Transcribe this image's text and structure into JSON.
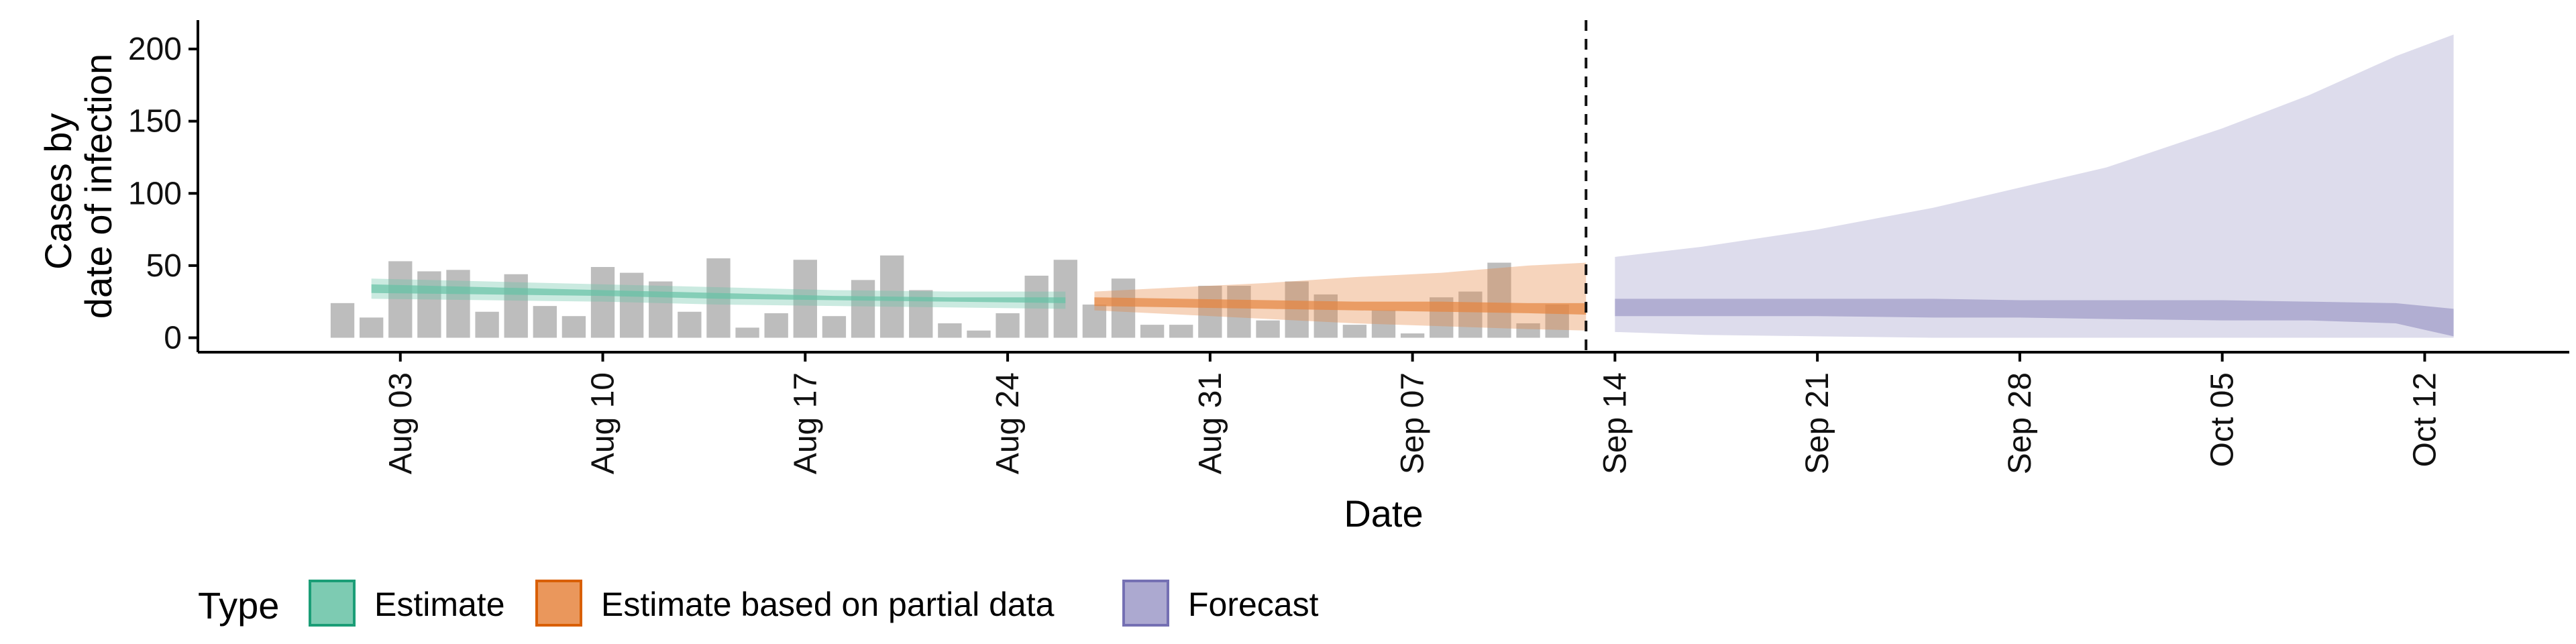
{
  "chart_data": {
    "type": "bar",
    "xlabel": "Date",
    "ylabel_lines": [
      "Cases by",
      "date of infection"
    ],
    "x_range": [
      "2020-07-27",
      "2020-10-17"
    ],
    "ylim": [
      -10,
      220
    ],
    "y_ticks": [
      0,
      50,
      100,
      150,
      200
    ],
    "x_ticks": [
      {
        "date": "2020-08-03",
        "label": "Aug 03"
      },
      {
        "date": "2020-08-10",
        "label": "Aug 10"
      },
      {
        "date": "2020-08-17",
        "label": "Aug 17"
      },
      {
        "date": "2020-08-24",
        "label": "Aug 24"
      },
      {
        "date": "2020-08-31",
        "label": "Aug 31"
      },
      {
        "date": "2020-09-07",
        "label": "Sep 07"
      },
      {
        "date": "2020-09-14",
        "label": "Sep 14"
      },
      {
        "date": "2020-09-21",
        "label": "Sep 21"
      },
      {
        "date": "2020-09-28",
        "label": "Sep 28"
      },
      {
        "date": "2020-10-05",
        "label": "Oct 05"
      },
      {
        "date": "2020-10-12",
        "label": "Oct 12"
      }
    ],
    "forecast_date": "2020-09-13",
    "bar_color": "#bdbdbd",
    "bars": {
      "start_date": "2020-08-01",
      "values": [
        24,
        14,
        53,
        46,
        47,
        18,
        44,
        22,
        15,
        49,
        45,
        39,
        18,
        55,
        7,
        17,
        54,
        15,
        40,
        57,
        33,
        10,
        5,
        17,
        43,
        54,
        23,
        41,
        9,
        9,
        36,
        36,
        12,
        39,
        30,
        9,
        19,
        3,
        28,
        32,
        52,
        10,
        23
      ]
    },
    "series": [
      {
        "name": "Estimate",
        "color": "#1b9e77",
        "fill": "#66c2a5",
        "dates": [
          "2020-08-02",
          "2020-08-06",
          "2020-08-10",
          "2020-08-14",
          "2020-08-18",
          "2020-08-22",
          "2020-08-26"
        ],
        "outer": [
          [
            27,
            41
          ],
          [
            26,
            39
          ],
          [
            25,
            37
          ],
          [
            23,
            35
          ],
          [
            22,
            33
          ],
          [
            21,
            32
          ],
          [
            20,
            32
          ]
        ],
        "inner": [
          [
            31,
            37
          ],
          [
            30,
            35
          ],
          [
            29,
            33
          ],
          [
            27,
            31
          ],
          [
            26,
            29
          ],
          [
            25,
            28
          ],
          [
            24,
            28
          ]
        ]
      },
      {
        "name": "Estimate based on partial data",
        "color": "#d95f02",
        "fill": "#e6853f",
        "dates": [
          "2020-08-27",
          "2020-08-30",
          "2020-09-02",
          "2020-09-05",
          "2020-09-08",
          "2020-09-11",
          "2020-09-13"
        ],
        "outer": [
          [
            19,
            32
          ],
          [
            16,
            35
          ],
          [
            13,
            38
          ],
          [
            10,
            42
          ],
          [
            8,
            45
          ],
          [
            6,
            50
          ],
          [
            5,
            52
          ]
        ],
        "inner": [
          [
            22,
            28
          ],
          [
            21,
            27
          ],
          [
            20,
            26
          ],
          [
            19,
            25
          ],
          [
            18,
            25
          ],
          [
            17,
            24
          ],
          [
            16,
            24
          ]
        ]
      },
      {
        "name": "Forecast",
        "color": "#7570b3",
        "fill": "#9e9ac8",
        "dates": [
          "2020-09-14",
          "2020-09-17",
          "2020-09-21",
          "2020-09-25",
          "2020-09-28",
          "2020-10-01",
          "2020-10-05",
          "2020-10-08",
          "2020-10-11",
          "2020-10-13"
        ],
        "outer": [
          [
            4,
            56
          ],
          [
            2,
            63
          ],
          [
            1,
            75
          ],
          [
            0,
            90
          ],
          [
            0,
            104
          ],
          [
            0,
            118
          ],
          [
            0,
            145
          ],
          [
            0,
            168
          ],
          [
            0,
            195
          ],
          [
            0,
            210
          ]
        ],
        "inner": [
          [
            15,
            27
          ],
          [
            15,
            27
          ],
          [
            15,
            27
          ],
          [
            14,
            27
          ],
          [
            14,
            26
          ],
          [
            13,
            26
          ],
          [
            12,
            26
          ],
          [
            12,
            25
          ],
          [
            10,
            24
          ],
          [
            1,
            20
          ]
        ]
      }
    ],
    "legend": {
      "title": "Type",
      "position": "bottom",
      "items": [
        "Estimate",
        "Estimate based on partial data",
        "Forecast"
      ]
    }
  }
}
